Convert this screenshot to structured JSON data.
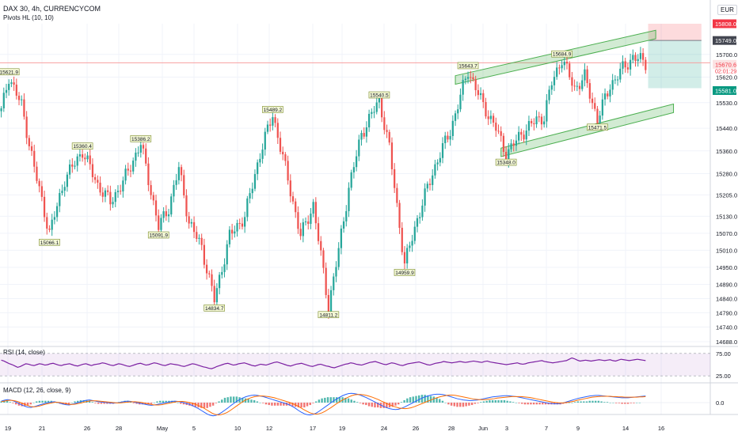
{
  "header": {
    "title": "DAX 30, 4h, CURRENCYCOM",
    "indicator": "Pivots HL (10, 10)",
    "currency": "EUR"
  },
  "rsi": {
    "label": "RSI (14, close)",
    "ticks": [
      "75.00",
      "25.00"
    ]
  },
  "macd": {
    "label": "MACD (12, 26, close, 9)",
    "ticks": [
      "0.0"
    ]
  },
  "price_badges": {
    "stop": "15808.0",
    "entry": "15749.0",
    "current": "15670.6",
    "countdown": "02:01:29",
    "target": "15581.0"
  },
  "colors": {
    "up": "#26a69a",
    "down": "#ef5350",
    "channel": "#4caf50",
    "stop_zone": "#f23645",
    "target_zone": "#089981",
    "rsi": "#7b1fa2",
    "macd": "#2962ff",
    "signal": "#ff6d00"
  },
  "chart_data": {
    "type": "candlestick",
    "title": "DAX 30, 4h, CURRENCYCOM",
    "x_ticks": [
      "19",
      "21",
      "26",
      "28",
      "May",
      "5",
      "10",
      "12",
      "17",
      "19",
      "24",
      "26",
      "28",
      "Jun",
      "3",
      "7",
      "9",
      "14",
      "16"
    ],
    "y_ticks": [
      15700.0,
      15620.0,
      15530.0,
      15440.0,
      15360.0,
      15280.0,
      15205.0,
      15130.0,
      15070.0,
      15010.0,
      14950.0,
      14890.0,
      14840.0,
      14790.0,
      14740.0,
      14688.0
    ],
    "ylim": [
      14688,
      15808
    ],
    "pivot_labels": [
      {
        "text": "15621.9",
        "i": 3,
        "high": true
      },
      {
        "text": "15066.1",
        "i": 19,
        "high": false
      },
      {
        "text": "15360.4",
        "i": 32,
        "high": true
      },
      {
        "text": "15386.2",
        "i": 55,
        "high": true
      },
      {
        "text": "15091.9",
        "i": 62,
        "high": false
      },
      {
        "text": "14834.7",
        "i": 84,
        "high": false
      },
      {
        "text": "15489.2",
        "i": 107,
        "high": true
      },
      {
        "text": "14811.2",
        "i": 129,
        "high": false
      },
      {
        "text": "15540.5",
        "i": 149,
        "high": true
      },
      {
        "text": "14959.9",
        "i": 159,
        "high": false
      },
      {
        "text": "15643.7",
        "i": 184,
        "high": true
      },
      {
        "text": "15348.0",
        "i": 199,
        "high": false
      },
      {
        "text": "15684.9",
        "i": 221,
        "high": true
      },
      {
        "text": "15471.5",
        "i": 235,
        "high": false
      }
    ],
    "channel": {
      "upper": [
        [
          179,
          15610
        ],
        [
          258,
          15770
        ]
      ],
      "lower": [
        [
          197,
          15355
        ],
        [
          265,
          15510
        ]
      ],
      "band": 30
    },
    "position": {
      "type": "long-short",
      "stop": 15808.0,
      "entry": 15749.0,
      "target": 15581.0,
      "start_i": 255,
      "end_i": 276
    },
    "hline": 15670.6,
    "rsi": {
      "range": [
        25,
        75
      ],
      "values": [
        60,
        58,
        55,
        52,
        50,
        47,
        44,
        46,
        49,
        52,
        51,
        49,
        48,
        50,
        52,
        51,
        49,
        50,
        52,
        53,
        51,
        49,
        48,
        50,
        51,
        52,
        50,
        48,
        47,
        49,
        51,
        52,
        50,
        48,
        50,
        51,
        52,
        54,
        53,
        51,
        49,
        48,
        50,
        52,
        51,
        49,
        47,
        46,
        48,
        50,
        52,
        53,
        51,
        49,
        50,
        52,
        54,
        53,
        51,
        49,
        48,
        50,
        52,
        51,
        50,
        49,
        47,
        46,
        48,
        50,
        52,
        51,
        49,
        47,
        45,
        44,
        42,
        41,
        43,
        46,
        48,
        50,
        52,
        53,
        51,
        49,
        50,
        52,
        53,
        54,
        52,
        50,
        48,
        47,
        49,
        51,
        50,
        49,
        51,
        53,
        55,
        56,
        54,
        52,
        50,
        48,
        47,
        49,
        51,
        52,
        53,
        51,
        49,
        47,
        46,
        48,
        50,
        51,
        49,
        47,
        46,
        44,
        43,
        45,
        47,
        49,
        51,
        52,
        54,
        53,
        51,
        50,
        49,
        51,
        53,
        55,
        56,
        57,
        55,
        53,
        51,
        50,
        52,
        54,
        53,
        51,
        49,
        48,
        50,
        52,
        53,
        54,
        55,
        56,
        54,
        52,
        50,
        49,
        51,
        53,
        54,
        55,
        57,
        56,
        55,
        54,
        55,
        56,
        57,
        56,
        55,
        56,
        57,
        58,
        57,
        56,
        55,
        57,
        58,
        56,
        55,
        54,
        53,
        52,
        51,
        50,
        51,
        52,
        53,
        54,
        52,
        51,
        52,
        54,
        55,
        56,
        57,
        58,
        59,
        57,
        56,
        55,
        54,
        55,
        56,
        57,
        58,
        59,
        62,
        65,
        63,
        60,
        58,
        59,
        60,
        59,
        58,
        59,
        60,
        61,
        60,
        59,
        60,
        61,
        59,
        58,
        60,
        62,
        61,
        60,
        59,
        60,
        61,
        62,
        61,
        60,
        59
      ]
    },
    "macd": {
      "series": [
        {
          "name": "MACD",
          "values": [
            5,
            8,
            10,
            9,
            6,
            2,
            -3,
            -8,
            -12,
            -15,
            -16,
            -14,
            -11,
            -8,
            -5,
            -2,
            0,
            2,
            3,
            1,
            -2,
            -5,
            -7,
            -8,
            -6,
            -3,
            0,
            3,
            6,
            8,
            9,
            7,
            5,
            3,
            2,
            1,
            0,
            -1,
            -2,
            -1,
            0,
            2,
            4,
            5,
            4,
            2,
            0,
            -2,
            -4,
            -6,
            -8,
            -9,
            -8,
            -6,
            -4,
            -2,
            0,
            2,
            4,
            5,
            4,
            2,
            0,
            -3,
            -6,
            -10,
            -15,
            -20,
            -26,
            -32,
            -38,
            -42,
            -44,
            -42,
            -38,
            -32,
            -25,
            -18,
            -10,
            -3,
            4,
            10,
            15,
            19,
            22,
            24,
            25,
            24,
            22,
            20,
            17,
            14,
            11,
            8,
            5,
            2,
            -1,
            -4,
            -8,
            -13,
            -19,
            -26,
            -32,
            -37,
            -40,
            -41,
            -39,
            -35,
            -29,
            -22,
            -15,
            -8,
            -1,
            6,
            12,
            18,
            23,
            27,
            30,
            31,
            30,
            28,
            25,
            21,
            17,
            12,
            7,
            2,
            -3,
            -8,
            -13,
            -17,
            -20,
            -22,
            -23,
            -22,
            -19,
            -15,
            -10,
            -5,
            0,
            5,
            10,
            15,
            19,
            22,
            25,
            27,
            28,
            28,
            27,
            25,
            22,
            19,
            16,
            13,
            11,
            9,
            8,
            7,
            7,
            8,
            9,
            11,
            13,
            15,
            17,
            19,
            20,
            21,
            22,
            23,
            23,
            22,
            21,
            20,
            18,
            16,
            14,
            12,
            10,
            8,
            6,
            4,
            2,
            0,
            -2,
            -3,
            -4,
            -4,
            -3,
            -1,
            2,
            5,
            8,
            11,
            14,
            16,
            18,
            20,
            22,
            23,
            24,
            24,
            23,
            22,
            21,
            20,
            19,
            18,
            17,
            16,
            16,
            16,
            17,
            18,
            19,
            20,
            21,
            22
          ]
        },
        {
          "name": "Signal",
          "values": [
            3,
            5,
            7,
            8,
            7,
            5,
            2,
            -2,
            -6,
            -10,
            -13,
            -14,
            -13,
            -11,
            -8,
            -5,
            -3,
            -1,
            1,
            1,
            0,
            -2,
            -4,
            -6,
            -6,
            -5,
            -3,
            -1,
            2,
            4,
            6,
            6,
            6,
            5,
            4,
            3,
            2,
            1,
            0,
            -1,
            -1,
            0,
            1,
            2,
            3,
            3,
            2,
            1,
            -1,
            -3,
            -5,
            -7,
            -8,
            -8,
            -7,
            -5,
            -3,
            -1,
            1,
            3,
            4,
            4,
            3,
            1,
            -1,
            -4,
            -8,
            -12,
            -17,
            -23,
            -29,
            -35,
            -39,
            -41,
            -40,
            -37,
            -33,
            -27,
            -20,
            -13,
            -6,
            1,
            7,
            12,
            16,
            19,
            21,
            22,
            22,
            21,
            20,
            18,
            16,
            13,
            10,
            7,
            4,
            1,
            -3,
            -7,
            -12,
            -18,
            -24,
            -29,
            -34,
            -37,
            -38,
            -37,
            -34,
            -29,
            -23,
            -17,
            -10,
            -3,
            3,
            9,
            14,
            19,
            23,
            26,
            27,
            27,
            26,
            24,
            21,
            18,
            14,
            10,
            5,
            1,
            -4,
            -8,
            -12,
            -15,
            -18,
            -19,
            -20,
            -19,
            -17,
            -14,
            -10,
            -6,
            -2,
            2,
            6,
            10,
            14,
            17,
            20,
            22,
            24,
            25,
            25,
            24,
            22,
            20,
            18,
            16,
            14,
            12,
            11,
            10,
            10,
            10,
            11,
            12,
            13,
            15,
            16,
            17,
            18,
            19,
            20,
            20,
            20,
            20,
            19,
            18,
            17,
            15,
            13,
            11,
            9,
            7,
            5,
            3,
            1,
            0,
            -1,
            -1,
            0,
            1,
            3,
            5,
            8,
            10,
            12,
            14,
            16,
            18,
            19,
            20,
            21,
            21,
            21,
            21,
            20,
            20,
            19,
            19,
            18,
            18,
            18,
            18,
            18,
            19,
            19,
            20
          ]
        }
      ]
    }
  }
}
